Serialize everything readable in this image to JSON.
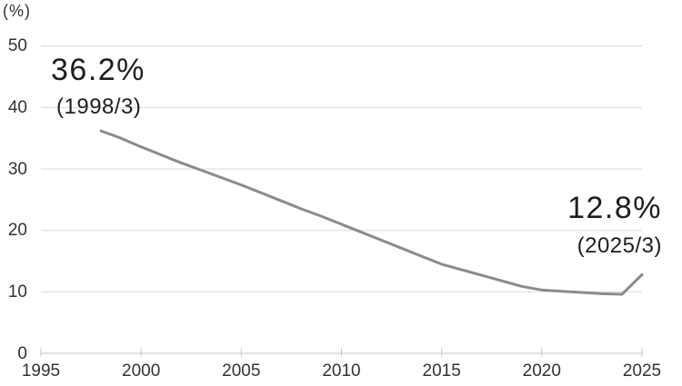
{
  "annotations": {
    "start": {
      "value": "36.2%",
      "label": "(1998/3)"
    },
    "end": {
      "value": "12.8%",
      "label": "(2025/3)"
    }
  },
  "colors": {
    "line": "#8b8b8b",
    "grid": "#d8d8d8",
    "axis": "#c6c6c6",
    "tick_text": "#333333",
    "annotation_text": "#1e1e1e"
  },
  "chart_data": {
    "type": "line",
    "title": "",
    "unit_label": "(%)",
    "xlabel": "",
    "ylabel": "(%)",
    "x": [
      1998,
      1999,
      2000,
      2001,
      2002,
      2003,
      2004,
      2005,
      2006,
      2007,
      2008,
      2009,
      2010,
      2011,
      2012,
      2013,
      2014,
      2015,
      2016,
      2017,
      2018,
      2019,
      2020,
      2021,
      2022,
      2023,
      2024,
      2025
    ],
    "values": [
      36.2,
      35.0,
      33.6,
      32.3,
      31.0,
      29.8,
      28.6,
      27.4,
      26.1,
      24.8,
      23.5,
      22.3,
      21.0,
      19.7,
      18.4,
      17.1,
      15.8,
      14.5,
      13.6,
      12.7,
      11.8,
      10.9,
      10.3,
      10.1,
      9.9,
      9.7,
      9.6,
      12.8
    ],
    "series_note": "share (%), fiscal years ending March; first point 1998/3 = 36.2%, last point 2025/3 = 12.8%",
    "x_ticks": [
      1995,
      2000,
      2005,
      2010,
      2015,
      2020,
      2025
    ],
    "y_ticks": [
      0,
      10,
      20,
      30,
      40,
      50
    ],
    "xlim": [
      1995,
      2025
    ],
    "ylim": [
      0,
      50
    ],
    "grid": "horizontal-only",
    "legend": "none"
  }
}
